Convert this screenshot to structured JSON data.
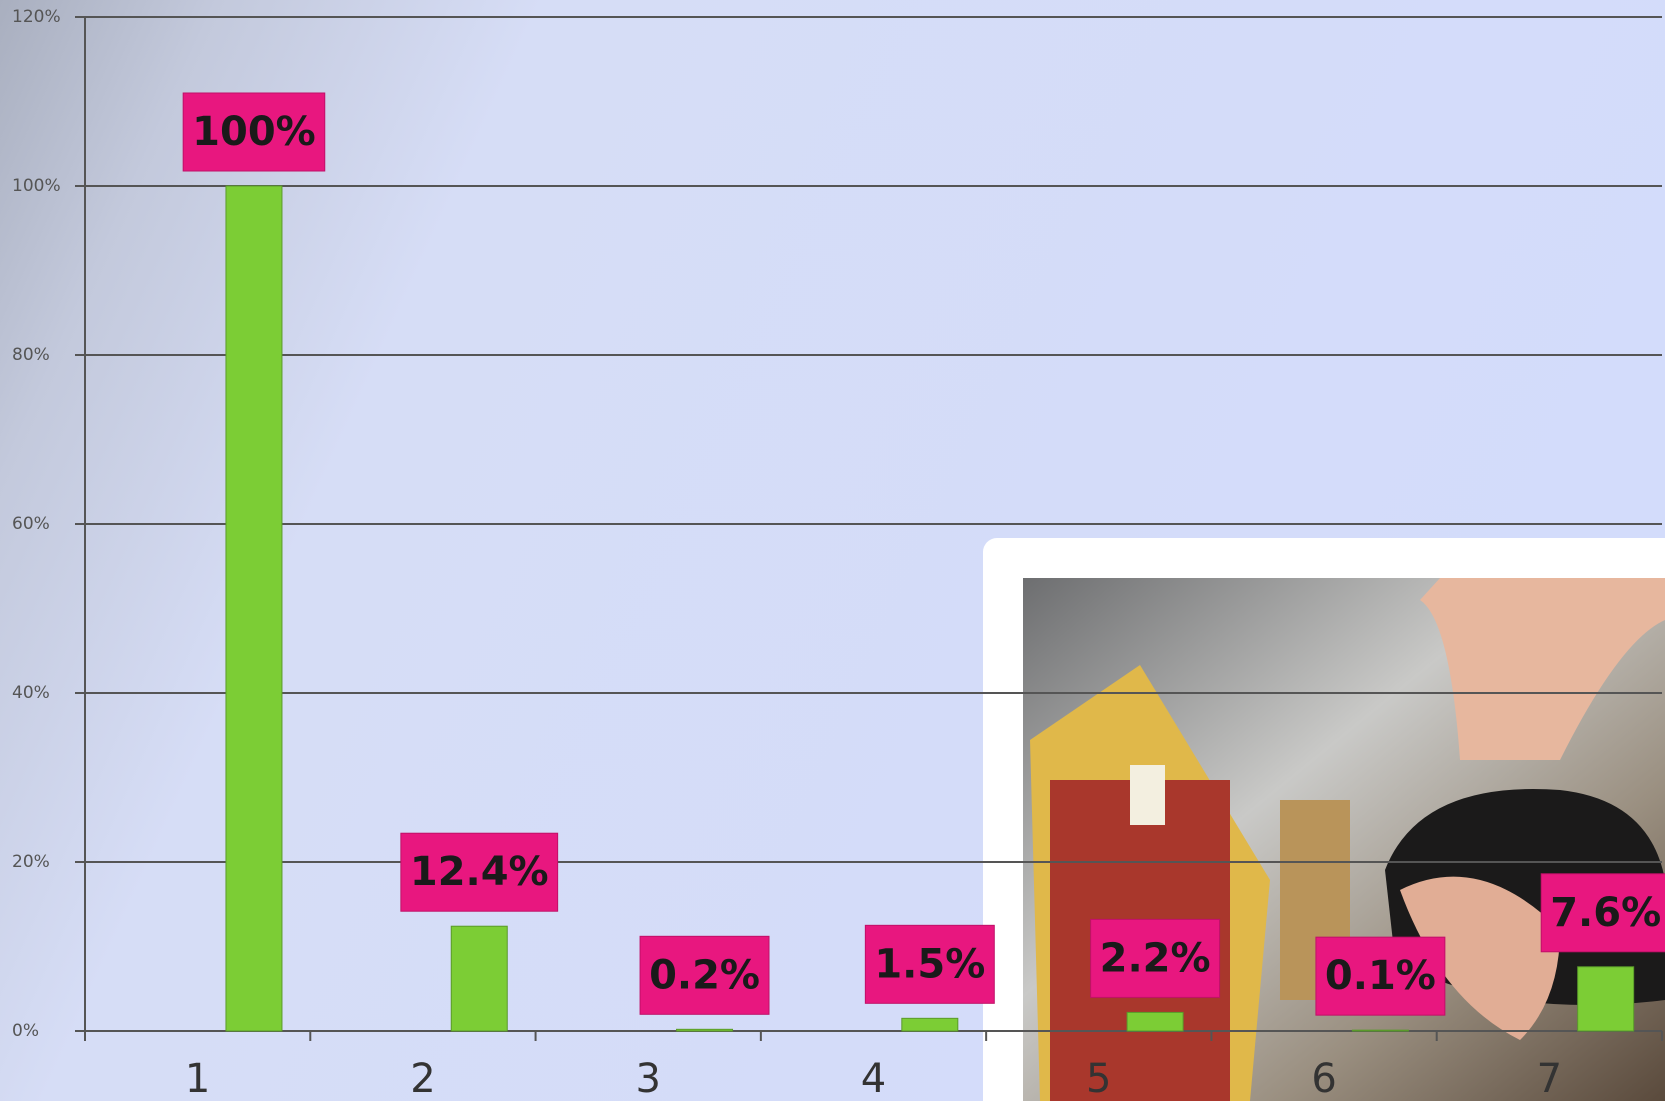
{
  "chart_data": {
    "type": "bar",
    "categories": [
      "1",
      "2",
      "3",
      "4",
      "5",
      "6",
      "7"
    ],
    "values": [
      100,
      12.4,
      0.2,
      1.5,
      2.2,
      0.1,
      7.6
    ],
    "value_labels": [
      "100%",
      "12.4%",
      "0.2%",
      "1.5%",
      "2.2%",
      "0.1%",
      "7.6%"
    ],
    "color": "#7ccd35",
    "label_color": "#e8177f",
    "ylim": [
      0,
      120
    ],
    "yticks": [
      {
        "value": 0,
        "label": "0%"
      },
      {
        "value": 20,
        "label": "20%"
      },
      {
        "value": 40,
        "label": "40%"
      },
      {
        "value": 60,
        "label": "60%"
      },
      {
        "value": 80,
        "label": "80%"
      },
      {
        "value": 100,
        "label": "100%"
      },
      {
        "value": 120,
        "label": "120%"
      }
    ],
    "grid": true
  }
}
